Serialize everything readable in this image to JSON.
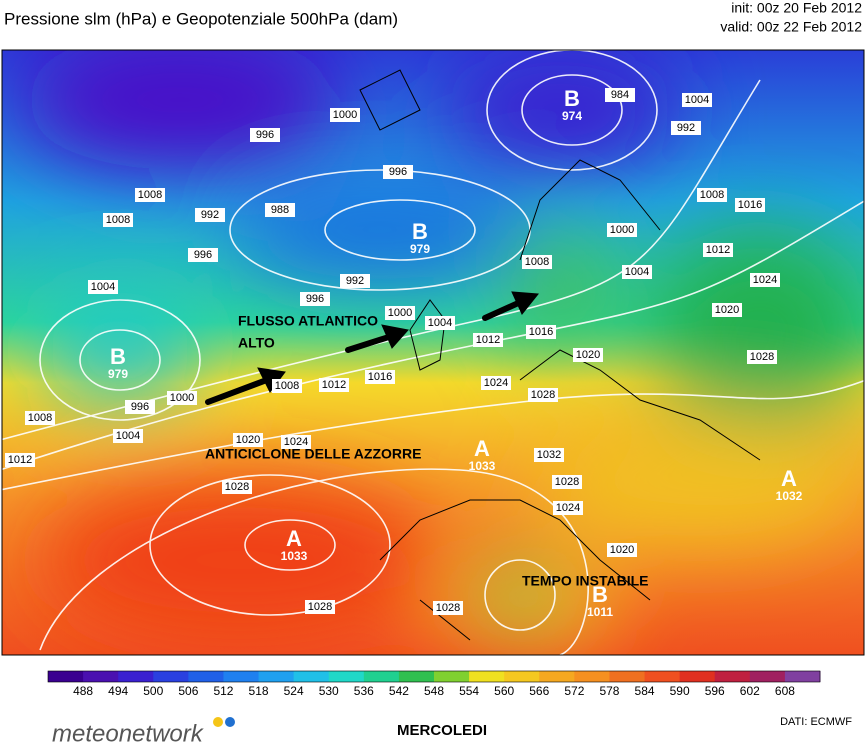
{
  "header": {
    "title": "Pressione slm (hPa) e Geopotenziale 500hPa (dam)",
    "init": "init: 00z 20 Feb 2012",
    "valid": "valid: 00z 22 Feb 2012"
  },
  "annotations": [
    "FLUSSO ATLANTICO",
    "ALTO",
    "ANTICICLONE DELLE AZZORRE",
    "TEMPO INSTABILE"
  ],
  "centers": [
    {
      "letter": "B",
      "value": "974"
    },
    {
      "letter": "B",
      "value": "979"
    },
    {
      "letter": "B",
      "value": "979"
    },
    {
      "letter": "A",
      "value": "1033"
    },
    {
      "letter": "A",
      "value": "1033"
    },
    {
      "letter": "A",
      "value": "1032"
    },
    {
      "letter": "B",
      "value": "1011"
    }
  ],
  "isobar_labels": [
    "1000",
    "996",
    "984",
    "992",
    "1004",
    "1008",
    "1008",
    "996",
    "992",
    "988",
    "996",
    "1008",
    "1016",
    "1000",
    "1012",
    "1004",
    "1008",
    "1024",
    "992",
    "1004",
    "996",
    "1000",
    "1004",
    "1020",
    "1016",
    "1012",
    "1020",
    "1028",
    "1008",
    "1012",
    "1016",
    "996",
    "1000",
    "1008",
    "1024",
    "1028",
    "1004",
    "1020",
    "1024",
    "1012",
    "1032",
    "1028",
    "1028",
    "1024",
    "1020",
    "1028",
    "1028"
  ],
  "colorbar": {
    "ticks": [
      "488",
      "494",
      "500",
      "506",
      "512",
      "518",
      "524",
      "530",
      "536",
      "542",
      "548",
      "554",
      "560",
      "566",
      "572",
      "578",
      "584",
      "590",
      "596",
      "602",
      "608"
    ]
  },
  "footer": {
    "logo": "meteonetwork",
    "day": "MERCOLEDI",
    "source": "DATI:  ECMWF"
  }
}
